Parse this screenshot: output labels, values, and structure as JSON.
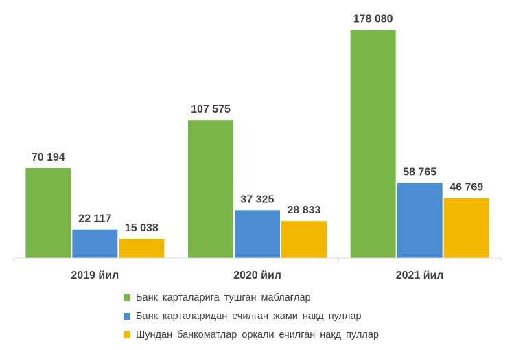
{
  "chart_data": {
    "type": "bar",
    "categories": [
      "2019 йил",
      "2020 йил",
      "2021 йил"
    ],
    "series": [
      {
        "name": "Банк карталарига тушган маблағлар",
        "color": "#7AB648",
        "values": [
          70194,
          107575,
          178080
        ],
        "labels": [
          "70 194",
          "107 575",
          "178 080"
        ]
      },
      {
        "name": "Банк карталаридан ечилган жами нақд пуллар",
        "color": "#4A8ED1",
        "values": [
          22117,
          37325,
          58765
        ],
        "labels": [
          "22 117",
          "37 325",
          "58 765"
        ]
      },
      {
        "name": "Шундан банкоматлар орқали ечилган нақд пуллар",
        "color": "#F2B800",
        "values": [
          15038,
          28833,
          46769
        ],
        "labels": [
          "15 038",
          "28 833",
          "46 769"
        ]
      }
    ],
    "ylim": [
      0,
      180000
    ],
    "grid": false,
    "legend_position": "bottom"
  }
}
